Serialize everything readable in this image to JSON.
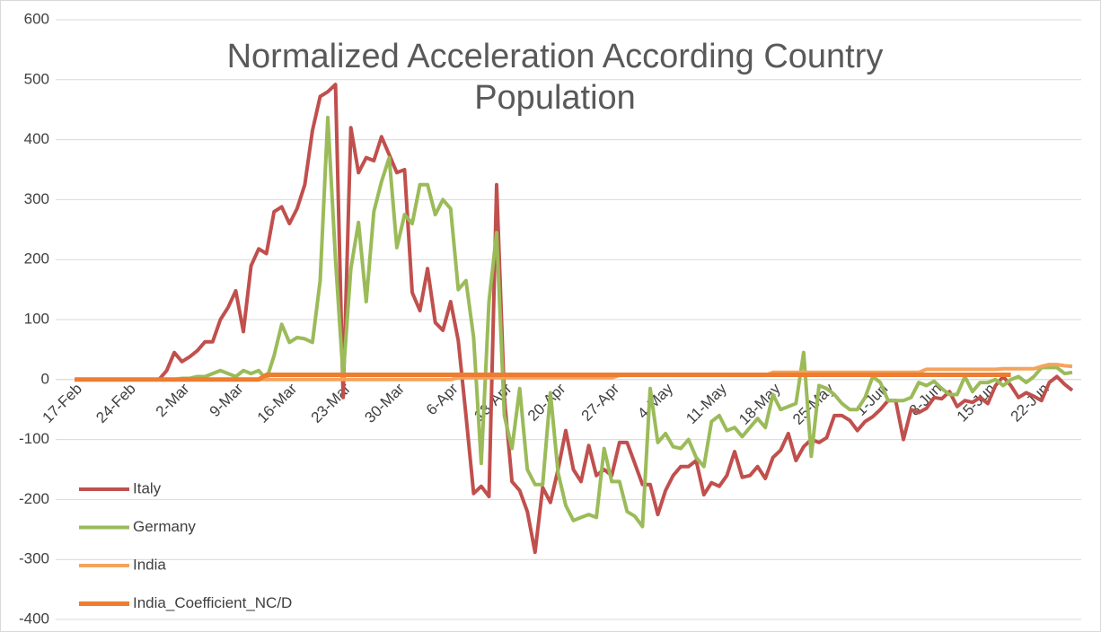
{
  "chart_data": {
    "type": "line",
    "title": "Normalized Acceleration According Country Population",
    "categories": [
      "17-Feb",
      null,
      null,
      null,
      null,
      null,
      null,
      "24-Feb",
      null,
      null,
      null,
      null,
      null,
      null,
      "2-Mar",
      null,
      null,
      null,
      null,
      null,
      null,
      "9-Mar",
      null,
      null,
      null,
      null,
      null,
      null,
      "16-Mar",
      null,
      null,
      null,
      null,
      null,
      null,
      "23-Mar",
      null,
      null,
      null,
      null,
      null,
      null,
      "30-Mar",
      null,
      null,
      null,
      null,
      null,
      null,
      "6-Apr",
      null,
      null,
      null,
      null,
      null,
      null,
      "13-Apr",
      null,
      null,
      null,
      null,
      null,
      null,
      "20-Apr",
      null,
      null,
      null,
      null,
      null,
      null,
      "27-Apr",
      null,
      null,
      null,
      null,
      null,
      null,
      "4-May",
      null,
      null,
      null,
      null,
      null,
      null,
      "11-May",
      null,
      null,
      null,
      null,
      null,
      null,
      "18-May",
      null,
      null,
      null,
      null,
      null,
      null,
      "25-May",
      null,
      null,
      null,
      null,
      null,
      null,
      "1-Jun",
      null,
      null,
      null,
      null,
      null,
      null,
      "8-Jun",
      null,
      null,
      null,
      null,
      null,
      null,
      "15-Jun",
      null,
      null,
      null,
      null,
      null,
      null,
      "22-Jun",
      null,
      null,
      null,
      null
    ],
    "series": [
      {
        "name": "Italy",
        "color": "#c0504d",
        "values": [
          0,
          0,
          0,
          0,
          0,
          0,
          0,
          0,
          0,
          0,
          0,
          0,
          15,
          45,
          30,
          38,
          48,
          63,
          63,
          100,
          120,
          148,
          80,
          190,
          218,
          210,
          280,
          288,
          260,
          285,
          325,
          415,
          472,
          480,
          492,
          -30,
          420,
          345,
          370,
          365,
          405,
          375,
          345,
          350,
          145,
          115,
          185,
          95,
          82,
          130,
          65,
          -60,
          -190,
          -178,
          -195,
          325,
          -30,
          -170,
          -185,
          -220,
          -288,
          -180,
          -205,
          -150,
          -85,
          -150,
          -170,
          -110,
          -160,
          -150,
          -160,
          -105,
          -105,
          -140,
          -175,
          -175,
          -225,
          -185,
          -160,
          -145,
          -145,
          -135,
          -192,
          -172,
          -178,
          -160,
          -120,
          -163,
          -160,
          -145,
          -165,
          -130,
          -118,
          -90,
          -135,
          -112,
          -100,
          -105,
          -97,
          -60,
          -60,
          -68,
          -85,
          -70,
          -62,
          -50,
          -35,
          -35,
          -100,
          -50,
          -55,
          -48,
          -30,
          -32,
          -20,
          -45,
          -35,
          -38,
          -30,
          -40,
          -10,
          5,
          -10,
          -30,
          -22,
          -28,
          -35,
          -5,
          5,
          -8,
          -18
        ]
      },
      {
        "name": "Germany",
        "color": "#9bbb59",
        "values": [
          0,
          0,
          0,
          0,
          0,
          0,
          0,
          0,
          0,
          0,
          0,
          0,
          0,
          0,
          2,
          2,
          5,
          5,
          10,
          15,
          10,
          5,
          15,
          10,
          15,
          0,
          40,
          92,
          62,
          70,
          68,
          62,
          165,
          437,
          200,
          5,
          185,
          262,
          130,
          280,
          330,
          370,
          220,
          275,
          260,
          325,
          325,
          275,
          300,
          285,
          150,
          165,
          70,
          -140,
          130,
          245,
          -60,
          -115,
          -15,
          -150,
          -175,
          -175,
          -22,
          -155,
          -210,
          -235,
          -230,
          -225,
          -230,
          -115,
          -170,
          -170,
          -220,
          -228,
          -245,
          -15,
          -105,
          -90,
          -112,
          -115,
          -100,
          -130,
          -145,
          -70,
          -60,
          -85,
          -80,
          -95,
          -80,
          -65,
          -80,
          -25,
          -50,
          -45,
          -40,
          45,
          -128,
          -10,
          -15,
          -25,
          -40,
          -50,
          -50,
          -30,
          5,
          -5,
          -35,
          -35,
          -35,
          -30,
          -5,
          -10,
          -3,
          -15,
          -25,
          -25,
          5,
          -20,
          -5,
          -5,
          0,
          -10,
          0,
          5,
          -5,
          5,
          20,
          20,
          20,
          10,
          12
        ]
      },
      {
        "name": "India",
        "color": "#f5a35c",
        "values": [
          0,
          0,
          0,
          0,
          0,
          0,
          0,
          0,
          0,
          0,
          0,
          0,
          0,
          0,
          0,
          0,
          0,
          0,
          0,
          0,
          0,
          0,
          0,
          0,
          0,
          0,
          0,
          0,
          0,
          0,
          0,
          0,
          0,
          0,
          0,
          0,
          0,
          0,
          0,
          0,
          0,
          0,
          0,
          0,
          0,
          0,
          0,
          0,
          0,
          0,
          3,
          3,
          3,
          3,
          3,
          3,
          3,
          3,
          3,
          3,
          3,
          3,
          3,
          3,
          3,
          3,
          3,
          3,
          3,
          3,
          3,
          7,
          7,
          7,
          7,
          7,
          7,
          7,
          7,
          7,
          7,
          7,
          7,
          7,
          7,
          7,
          7,
          7,
          7,
          7,
          7,
          12,
          12,
          12,
          12,
          12,
          12,
          12,
          12,
          12,
          12,
          12,
          12,
          12,
          12,
          12,
          12,
          12,
          12,
          12,
          12,
          17,
          17,
          17,
          17,
          17,
          17,
          17,
          17,
          17,
          17,
          18,
          18,
          18,
          18,
          18,
          22,
          25,
          25,
          23,
          22
        ]
      },
      {
        "name": "India_Coefficient_NC/D",
        "color": "#ed7d31",
        "values": [
          0,
          0,
          0,
          0,
          0,
          0,
          0,
          0,
          0,
          0,
          0,
          0,
          0,
          0,
          0,
          0,
          0,
          0,
          0,
          0,
          0,
          0,
          0,
          0,
          0,
          8,
          8,
          8,
          8,
          8,
          8,
          8,
          8,
          8,
          8,
          8,
          8,
          8,
          8,
          8,
          8,
          8,
          8,
          8,
          8,
          8,
          8,
          8,
          8,
          8,
          8,
          8,
          8,
          8,
          8,
          8,
          8,
          8,
          8,
          8,
          8,
          8,
          8,
          8,
          8,
          8,
          8,
          8,
          8,
          8,
          8,
          8,
          8,
          8,
          8,
          8,
          8,
          8,
          8,
          8,
          8,
          8,
          8,
          8,
          8,
          8,
          8,
          8,
          8,
          8,
          8,
          8,
          8,
          8,
          8,
          8,
          8,
          8,
          8,
          8,
          8,
          8,
          8,
          8,
          8,
          8,
          8,
          8,
          8,
          8,
          8,
          8,
          8,
          8,
          8,
          8,
          8,
          8,
          8,
          8,
          8,
          8,
          8,
          null,
          null,
          null,
          null,
          null,
          null,
          null,
          null
        ]
      }
    ],
    "ylim": [
      -400,
      600
    ],
    "yticks": [
      -400,
      -300,
      -200,
      -100,
      0,
      100,
      200,
      300,
      400,
      500,
      600
    ],
    "grid": true,
    "legend": "lower left"
  }
}
